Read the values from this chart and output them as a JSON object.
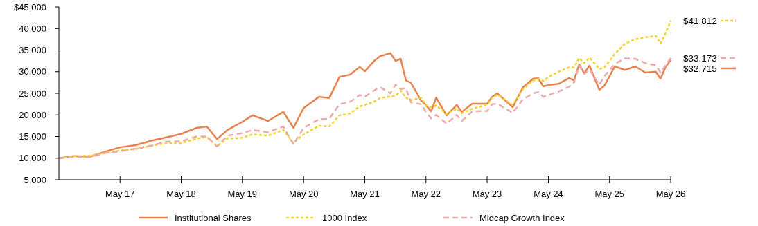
{
  "chart_data": {
    "type": "line",
    "x": [
      "2016-05",
      "2016-08",
      "2016-11",
      "2017-02",
      "2017-05",
      "2017-08",
      "2017-11",
      "2018-02",
      "2018-05",
      "2018-08",
      "2018-10",
      "2018-12",
      "2019-02",
      "2019-05",
      "2019-07",
      "2019-10",
      "2020-01",
      "2020-03",
      "2020-05",
      "2020-08",
      "2020-10",
      "2020-12",
      "2021-02",
      "2021-04",
      "2021-05",
      "2021-07",
      "2021-08",
      "2021-10",
      "2021-11",
      "2021-12",
      "2022-01",
      "2022-02",
      "2022-04",
      "2022-05",
      "2022-06",
      "2022-07",
      "2022-09",
      "2022-11",
      "2022-12",
      "2023-02",
      "2023-05",
      "2023-06",
      "2023-07",
      "2023-10",
      "2023-12",
      "2024-02",
      "2024-03",
      "2024-04",
      "2024-05",
      "2024-07",
      "2024-09",
      "2024-10",
      "2024-11",
      "2024-12",
      "2025-01",
      "2025-03",
      "2025-04",
      "2025-06",
      "2025-08",
      "2025-10",
      "2025-12",
      "2026-02",
      "2026-03",
      "2026-04",
      "2026-05"
    ],
    "series": [
      {
        "name": "Institutional Shares",
        "color": "#e8814c",
        "line_style": "solid",
        "values": [
          10000,
          10500,
          10300,
          11500,
          12500,
          13000,
          14000,
          14800,
          15600,
          17000,
          17300,
          14400,
          16500,
          18400,
          19900,
          18600,
          20700,
          17000,
          21600,
          24200,
          23900,
          28800,
          29300,
          31100,
          30100,
          32700,
          33600,
          34300,
          32500,
          33000,
          28000,
          27400,
          23400,
          22300,
          20800,
          24000,
          19900,
          22300,
          20700,
          22600,
          22600,
          24200,
          25000,
          21800,
          26400,
          28400,
          28500,
          26600,
          26900,
          27200,
          28500,
          28000,
          31700,
          29600,
          31400,
          25800,
          26800,
          31200,
          30400,
          31200,
          29800,
          30000,
          28400,
          31100,
          32715
        ],
        "value_labels": [
          null,
          null,
          null,
          null,
          null,
          null,
          null,
          null,
          null,
          null,
          null,
          null,
          null,
          null,
          null,
          null,
          null,
          null,
          null,
          null,
          null,
          null,
          null,
          null,
          null,
          null,
          null,
          null,
          null,
          null,
          null,
          null,
          null,
          null,
          null,
          null,
          null,
          null,
          null,
          null,
          null,
          null,
          null,
          null,
          null,
          null,
          null,
          null,
          null,
          null,
          null,
          null,
          null,
          null,
          null,
          null,
          null,
          null,
          null,
          null,
          null,
          null,
          null,
          null,
          "$32,715"
        ]
      },
      {
        "name": "1000 Index",
        "color": "#f5d22a",
        "line_style": "dotted",
        "values": [
          10000,
          10400,
          10600,
          11200,
          11800,
          12100,
          12800,
          13500,
          13500,
          14500,
          14900,
          12800,
          14500,
          14700,
          15500,
          15200,
          16500,
          13500,
          15500,
          17500,
          17300,
          19900,
          20300,
          22000,
          22300,
          23200,
          23900,
          24300,
          24400,
          25600,
          24000,
          23400,
          24000,
          22300,
          21700,
          22200,
          20200,
          21500,
          20400,
          21400,
          22400,
          23900,
          24700,
          22300,
          26000,
          28000,
          28400,
          27800,
          28800,
          30000,
          31000,
          31000,
          33200,
          32000,
          33300,
          30600,
          31000,
          34100,
          36500,
          37500,
          38000,
          38300,
          36500,
          39000,
          41812
        ],
        "value_labels": [
          null,
          null,
          null,
          null,
          null,
          null,
          null,
          null,
          null,
          null,
          null,
          null,
          null,
          null,
          null,
          null,
          null,
          null,
          null,
          null,
          null,
          null,
          null,
          null,
          null,
          null,
          null,
          null,
          null,
          null,
          null,
          null,
          null,
          null,
          null,
          null,
          null,
          null,
          null,
          null,
          null,
          null,
          null,
          null,
          null,
          null,
          null,
          null,
          null,
          null,
          null,
          null,
          null,
          null,
          null,
          null,
          null,
          null,
          null,
          null,
          null,
          null,
          null,
          null,
          "$41,812"
        ]
      },
      {
        "name": "Midcap Growth Index",
        "color": "#eeaaaa",
        "line_style": "dashed",
        "values": [
          10000,
          10300,
          10200,
          11200,
          11600,
          12200,
          12900,
          13800,
          13900,
          15000,
          15000,
          12700,
          15200,
          15800,
          16500,
          16000,
          17300,
          13200,
          17000,
          19000,
          19100,
          22500,
          23000,
          24600,
          24200,
          25800,
          26400,
          25000,
          27000,
          26000,
          26200,
          22900,
          22500,
          20700,
          19200,
          20000,
          18000,
          20000,
          18600,
          20800,
          20900,
          22500,
          22600,
          20500,
          23600,
          25000,
          25300,
          24200,
          24600,
          25400,
          26500,
          27500,
          31400,
          29500,
          30500,
          27000,
          29000,
          31800,
          33100,
          33000,
          32000,
          31500,
          29800,
          31500,
          33173
        ],
        "value_labels": [
          null,
          null,
          null,
          null,
          null,
          null,
          null,
          null,
          null,
          null,
          null,
          null,
          null,
          null,
          null,
          null,
          null,
          null,
          null,
          null,
          null,
          null,
          null,
          null,
          null,
          null,
          null,
          null,
          null,
          null,
          null,
          null,
          null,
          null,
          null,
          null,
          null,
          null,
          null,
          null,
          null,
          null,
          null,
          null,
          null,
          null,
          null,
          null,
          null,
          null,
          null,
          null,
          null,
          null,
          null,
          null,
          null,
          null,
          null,
          null,
          null,
          null,
          null,
          null,
          "$33,173"
        ]
      }
    ],
    "xlim": [
      "2016-05",
      "2026-05"
    ],
    "xticks": [
      {
        "value": "2017-05",
        "label": "May 17"
      },
      {
        "value": "2018-05",
        "label": "May 18"
      },
      {
        "value": "2019-05",
        "label": "May 19"
      },
      {
        "value": "2020-05",
        "label": "May 20"
      },
      {
        "value": "2021-05",
        "label": "May 21"
      },
      {
        "value": "2022-05",
        "label": "May 22"
      },
      {
        "value": "2023-05",
        "label": "May 23"
      },
      {
        "value": "2024-05",
        "label": "May 24"
      },
      {
        "value": "2025-05",
        "label": "May 25"
      },
      {
        "value": "2026-05",
        "label": "May 26"
      }
    ],
    "ylim": [
      5000,
      45000
    ],
    "yticks": [
      {
        "value": 5000,
        "label": "5,000"
      },
      {
        "value": 10000,
        "label": "10,000"
      },
      {
        "value": 15000,
        "label": "15,000"
      },
      {
        "value": 20000,
        "label": "20,000"
      },
      {
        "value": 25000,
        "label": "25,000"
      },
      {
        "value": 30000,
        "label": "30,000"
      },
      {
        "value": 35000,
        "label": "35,000"
      },
      {
        "value": 40000,
        "label": "40,000"
      },
      {
        "value": 45000,
        "label": "$45,000"
      }
    ],
    "grid": false,
    "legend": "bottom",
    "marker": "none"
  }
}
